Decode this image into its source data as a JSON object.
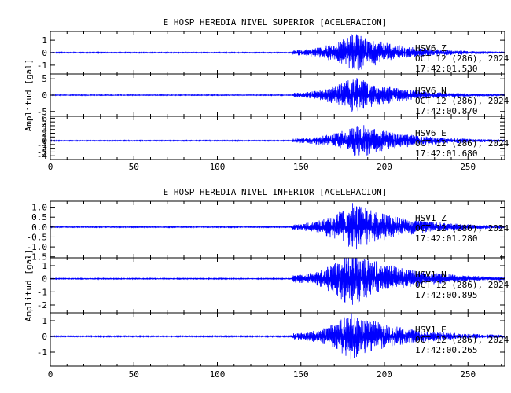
{
  "colors": {
    "trace": "#0000ff",
    "axis": "#000000",
    "background": "#ffffff"
  },
  "chart_data": [
    {
      "type": "line",
      "title": "E HOSP HEREDIA NIVEL SUPERIOR [ACELERACION]",
      "ylabel": "Amplitud [gal]",
      "xlim": [
        0,
        272
      ],
      "xticks": [
        0,
        50,
        100,
        150,
        200,
        250
      ],
      "grid": false,
      "panels": [
        {
          "channel": "HSV6 Z",
          "station": "HSV6",
          "component": "Z",
          "date": "OCT 12 (286), 2024",
          "start_time": "17:42:01.530",
          "ylim": [
            -1.7,
            1.7
          ],
          "yticks": [
            -1,
            0,
            1
          ],
          "noise": 0.03,
          "pstart": 145,
          "peak_time": 182,
          "peak_amp": 1.6,
          "decay": 26
        },
        {
          "channel": "HSV6 N",
          "station": "HSV6",
          "component": "N",
          "date": "OCT 12 (286), 2024",
          "start_time": "17:42:00.870",
          "ylim": [
            -6.5,
            6.5
          ],
          "yticks": [
            -5,
            0,
            5
          ],
          "noise": 0.1,
          "pstart": 145,
          "peak_time": 182,
          "peak_amp": 5.5,
          "decay": 26
        },
        {
          "channel": "HSV6 E",
          "station": "HSV6",
          "component": "E",
          "date": "OCT 12 (286), 2024",
          "start_time": "17:42:01.680",
          "ylim": [
            -5,
            6.5
          ],
          "yticks": [
            -4,
            -3,
            -2,
            -1,
            0,
            1,
            2,
            3,
            4,
            5,
            6
          ],
          "noise": 0.1,
          "pstart": 145,
          "peak_time": 185,
          "peak_amp": 4.5,
          "decay": 28
        }
      ]
    },
    {
      "type": "line",
      "title": "E HOSP HEREDIA NIVEL INFERIOR [ACELERACION]",
      "ylabel": "Amplitud [gal]",
      "xlim": [
        0,
        272
      ],
      "xticks": [
        0,
        50,
        100,
        150,
        200,
        250
      ],
      "grid": false,
      "panels": [
        {
          "channel": "HSV1 Z",
          "station": "HSV1",
          "component": "Z",
          "date": "OCT 12 (286), 2024",
          "start_time": "17:42:01.280",
          "ylim": [
            -1.55,
            1.3
          ],
          "yticks": [
            -1.5,
            -1.0,
            -0.5,
            0.0,
            0.5,
            1.0
          ],
          "noise": 0.02,
          "pstart": 145,
          "peak_time": 181,
          "peak_amp": 1.2,
          "decay": 30
        },
        {
          "channel": "HSV1 N",
          "station": "HSV1",
          "component": "N",
          "date": "OCT 12 (286), 2024",
          "start_time": "17:42:00.895",
          "ylim": [
            -2.6,
            1.6
          ],
          "yticks": [
            -2,
            -1,
            0,
            1
          ],
          "noise": 0.03,
          "pstart": 145,
          "peak_time": 180,
          "peak_amp": 2.2,
          "decay": 30
        },
        {
          "channel": "HSV1 E",
          "station": "HSV1",
          "component": "E",
          "date": "OCT 12 (286), 2024",
          "start_time": "17:42:00.265",
          "ylim": [
            -1.9,
            1.5
          ],
          "yticks": [
            -1,
            0,
            1
          ],
          "noise": 0.03,
          "pstart": 145,
          "peak_time": 180,
          "peak_amp": 1.5,
          "decay": 30
        }
      ]
    }
  ]
}
